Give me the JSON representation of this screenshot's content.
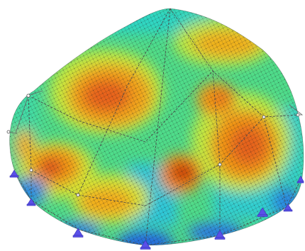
{
  "scene": {
    "subject": "fea-dome-stress-contour",
    "legend_colors": [
      "#1f3fd8",
      "#00a6e0",
      "#24d3c5",
      "#5fe37a",
      "#c9ea3b",
      "#f7d21f",
      "#f39a14",
      "#e35e12",
      "#b81e08"
    ],
    "support_color": "#5a50e8",
    "mesh_color": "#2b2b2b",
    "edge_color": "#555555",
    "background": "#ffffff"
  }
}
